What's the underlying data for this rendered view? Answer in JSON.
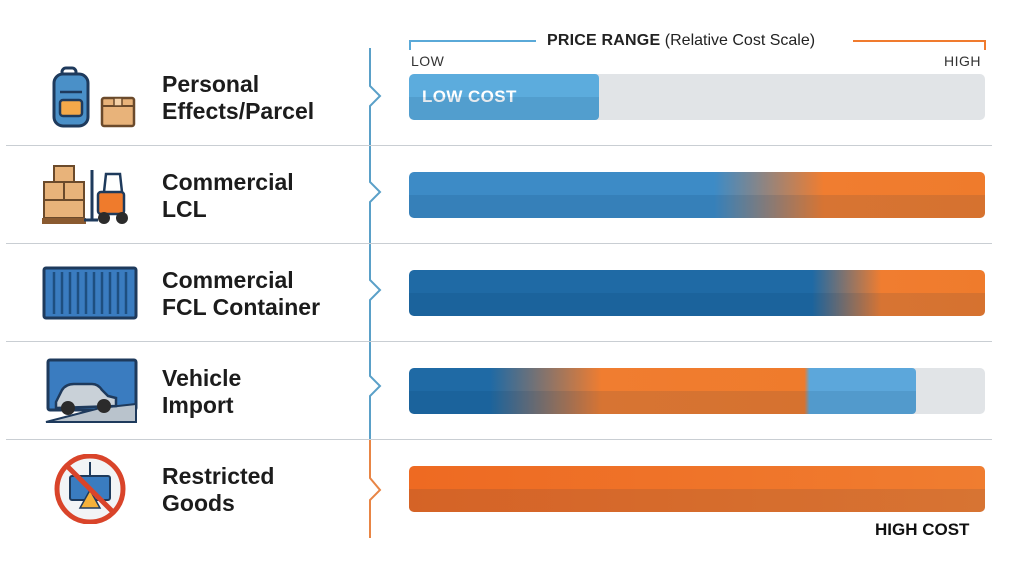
{
  "header": {
    "title_bold": "PRICE RANGE",
    "title_rest": "(Relative Cost Scale)",
    "low_label": "LOW",
    "high_label": "HIGH"
  },
  "chart_data": {
    "type": "bar",
    "title": "PRICE RANGE (Relative Cost Scale)",
    "x_range_labels": [
      "LOW",
      "HIGH"
    ],
    "xlim": [
      0,
      100
    ],
    "categories": [
      "Personal Effects/Parcel",
      "Commercial LCL",
      "Commercial FCL Container",
      "Vehicle Import",
      "Restricted Goods"
    ],
    "values": [
      33,
      100,
      100,
      88,
      100
    ],
    "annotations": [
      {
        "row": 0,
        "text": "LOW COST",
        "placement": "inside-bar"
      },
      {
        "row": 4,
        "text": "HIGH COST",
        "placement": "below-bar-right"
      }
    ],
    "colors": {
      "light_blue": "#5cacdd",
      "mid_blue": "#3d8bc6",
      "dark_blue": "#1f6aa5",
      "orange": "#ef7b2c",
      "deep_orange": "#ee6a22",
      "track": "#e1e4e7",
      "connector_blue": "#5aa0c8",
      "connector_orange": "#e88545"
    }
  },
  "rows": [
    {
      "label": "Personal\nEffects/Parcel",
      "icon": "backpack-and-parcel-icon"
    },
    {
      "label": "Commercial\nLCL",
      "icon": "forklift-with-boxes-icon"
    },
    {
      "label": "Commercial\nFCL Container",
      "icon": "shipping-container-icon"
    },
    {
      "label": "Vehicle\nImport",
      "icon": "car-in-container-icon"
    },
    {
      "label": "Restricted\nGoods",
      "icon": "prohibited-container-icon"
    }
  ]
}
